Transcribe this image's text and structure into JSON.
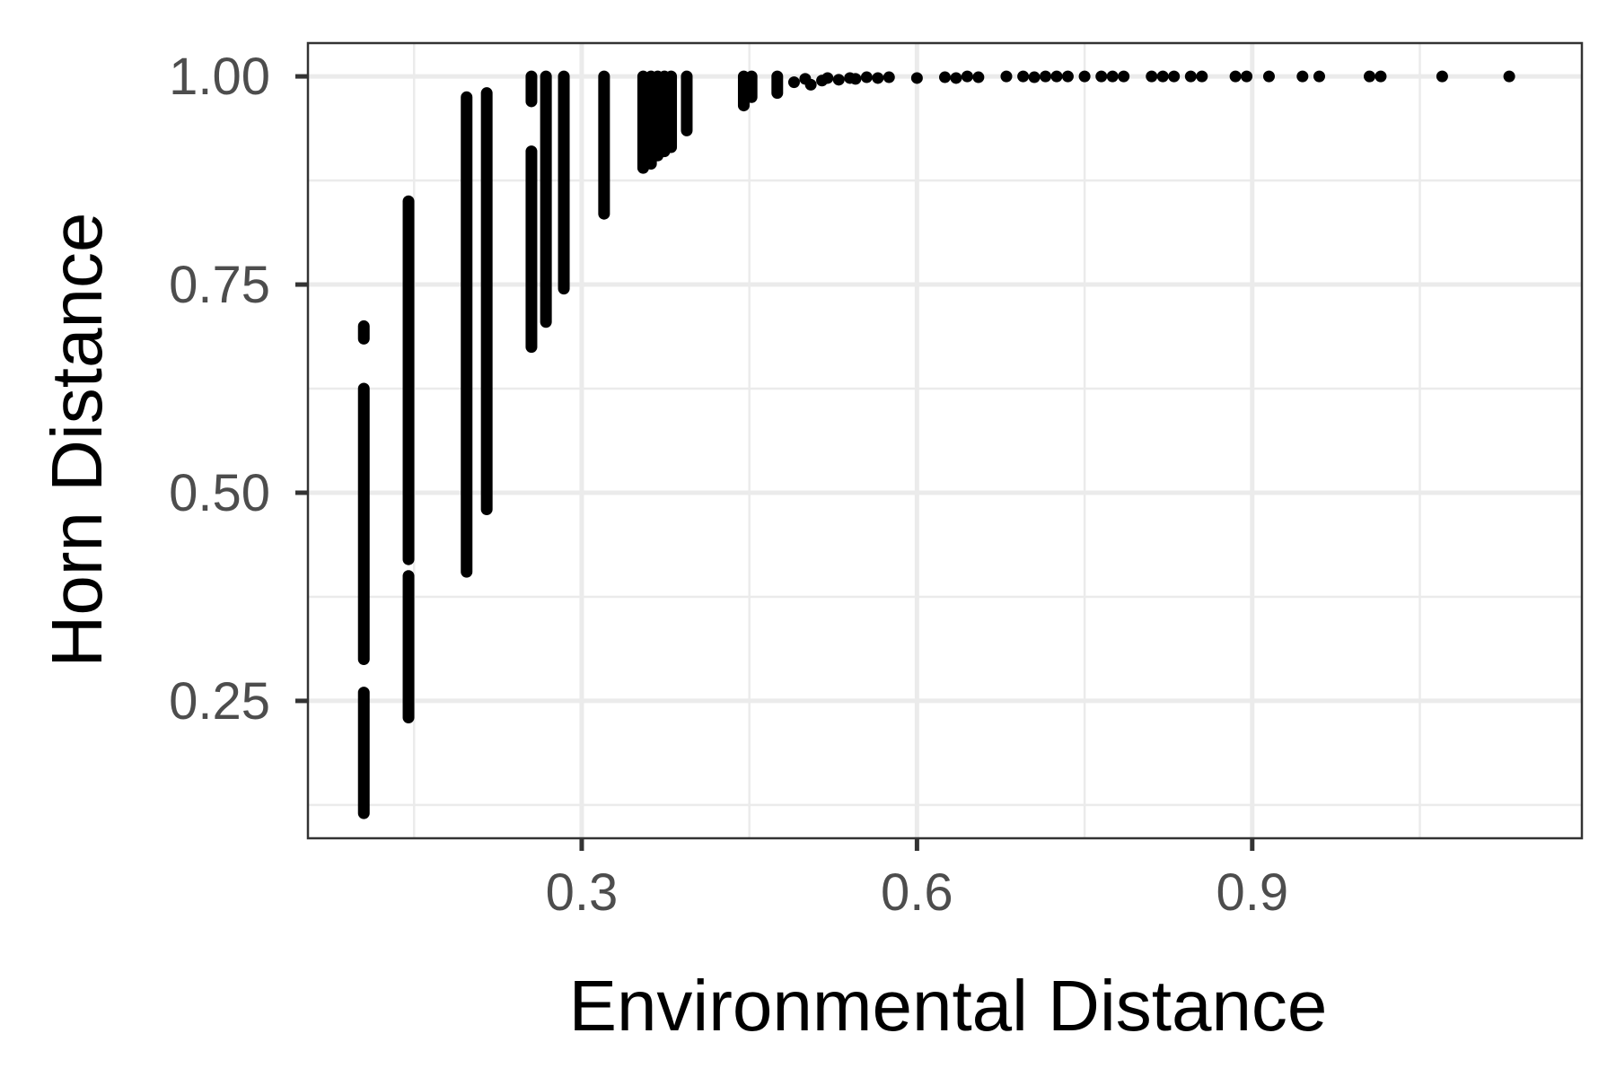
{
  "chart_data": {
    "type": "scatter",
    "xlabel": "Environmental Distance",
    "ylabel": "Horn Distance",
    "xlim": [
      0.055,
      1.195
    ],
    "ylim": [
      0.085,
      1.04
    ],
    "xticks": [
      0.3,
      0.6,
      0.9
    ],
    "xtick_labels": [
      "0.3",
      "0.6",
      "0.9"
    ],
    "xminor": [
      0.15,
      0.45,
      0.75,
      1.05
    ],
    "yticks": [
      0.25,
      0.5,
      0.75,
      1.0
    ],
    "ytick_labels": [
      "0.25",
      "0.50",
      "0.75",
      "1.00"
    ],
    "yminor": [
      0.125,
      0.375,
      0.625,
      0.875
    ],
    "grid": true,
    "legend": "none",
    "colors": {
      "point": "#000000",
      "grid": "#ebebeb",
      "panel_border": "#333333",
      "tick_label": "#4d4d4d"
    },
    "point_columns": [
      {
        "x": 0.105,
        "ymin": 0.115,
        "ymax": 0.26
      },
      {
        "x": 0.105,
        "ymin": 0.3,
        "ymax": 0.625
      },
      {
        "x": 0.105,
        "ymin": 0.685,
        "ymax": 0.7
      },
      {
        "x": 0.145,
        "ymin": 0.23,
        "ymax": 0.4
      },
      {
        "x": 0.145,
        "ymin": 0.42,
        "ymax": 0.85
      },
      {
        "x": 0.197,
        "ymin": 0.405,
        "ymax": 0.975
      },
      {
        "x": 0.215,
        "ymin": 0.48,
        "ymax": 0.98
      },
      {
        "x": 0.255,
        "ymin": 0.675,
        "ymax": 0.91
      },
      {
        "x": 0.255,
        "ymin": 0.97,
        "ymax": 1.0
      },
      {
        "x": 0.268,
        "ymin": 0.705,
        "ymax": 1.0
      },
      {
        "x": 0.284,
        "ymin": 0.745,
        "ymax": 1.0
      },
      {
        "x": 0.32,
        "ymin": 0.835,
        "ymax": 1.0
      },
      {
        "x": 0.355,
        "ymin": 0.89,
        "ymax": 1.0
      },
      {
        "x": 0.362,
        "ymin": 0.895,
        "ymax": 1.0
      },
      {
        "x": 0.368,
        "ymin": 0.905,
        "ymax": 1.0
      },
      {
        "x": 0.374,
        "ymin": 0.91,
        "ymax": 1.0
      },
      {
        "x": 0.38,
        "ymin": 0.915,
        "ymax": 1.0
      },
      {
        "x": 0.394,
        "ymin": 0.935,
        "ymax": 1.0
      },
      {
        "x": 0.445,
        "ymin": 0.965,
        "ymax": 1.0
      },
      {
        "x": 0.452,
        "ymin": 0.975,
        "ymax": 1.0
      },
      {
        "x": 0.475,
        "ymin": 0.98,
        "ymax": 1.0
      }
    ],
    "points": [
      {
        "x": 0.49,
        "y": 0.993
      },
      {
        "x": 0.5,
        "y": 0.997
      },
      {
        "x": 0.505,
        "y": 0.99
      },
      {
        "x": 0.515,
        "y": 0.995
      },
      {
        "x": 0.52,
        "y": 0.998
      },
      {
        "x": 0.53,
        "y": 0.996
      },
      {
        "x": 0.54,
        "y": 0.998
      },
      {
        "x": 0.545,
        "y": 0.997
      },
      {
        "x": 0.555,
        "y": 0.999
      },
      {
        "x": 0.565,
        "y": 0.998
      },
      {
        "x": 0.575,
        "y": 0.999
      },
      {
        "x": 0.6,
        "y": 0.998
      },
      {
        "x": 0.625,
        "y": 0.999
      },
      {
        "x": 0.635,
        "y": 0.998
      },
      {
        "x": 0.645,
        "y": 1.0
      },
      {
        "x": 0.655,
        "y": 0.999
      },
      {
        "x": 0.68,
        "y": 1.0
      },
      {
        "x": 0.695,
        "y": 1.0
      },
      {
        "x": 0.705,
        "y": 0.999
      },
      {
        "x": 0.715,
        "y": 1.0
      },
      {
        "x": 0.725,
        "y": 1.0
      },
      {
        "x": 0.735,
        "y": 1.0
      },
      {
        "x": 0.75,
        "y": 1.0
      },
      {
        "x": 0.765,
        "y": 1.0
      },
      {
        "x": 0.775,
        "y": 1.0
      },
      {
        "x": 0.785,
        "y": 1.0
      },
      {
        "x": 0.81,
        "y": 1.0
      },
      {
        "x": 0.82,
        "y": 1.0
      },
      {
        "x": 0.83,
        "y": 1.0
      },
      {
        "x": 0.845,
        "y": 1.0
      },
      {
        "x": 0.855,
        "y": 1.0
      },
      {
        "x": 0.885,
        "y": 1.0
      },
      {
        "x": 0.895,
        "y": 1.0
      },
      {
        "x": 0.915,
        "y": 1.0
      },
      {
        "x": 0.945,
        "y": 1.0
      },
      {
        "x": 0.96,
        "y": 1.0
      },
      {
        "x": 1.005,
        "y": 1.0
      },
      {
        "x": 1.015,
        "y": 1.0
      },
      {
        "x": 1.07,
        "y": 1.0
      },
      {
        "x": 1.13,
        "y": 1.0
      }
    ]
  }
}
